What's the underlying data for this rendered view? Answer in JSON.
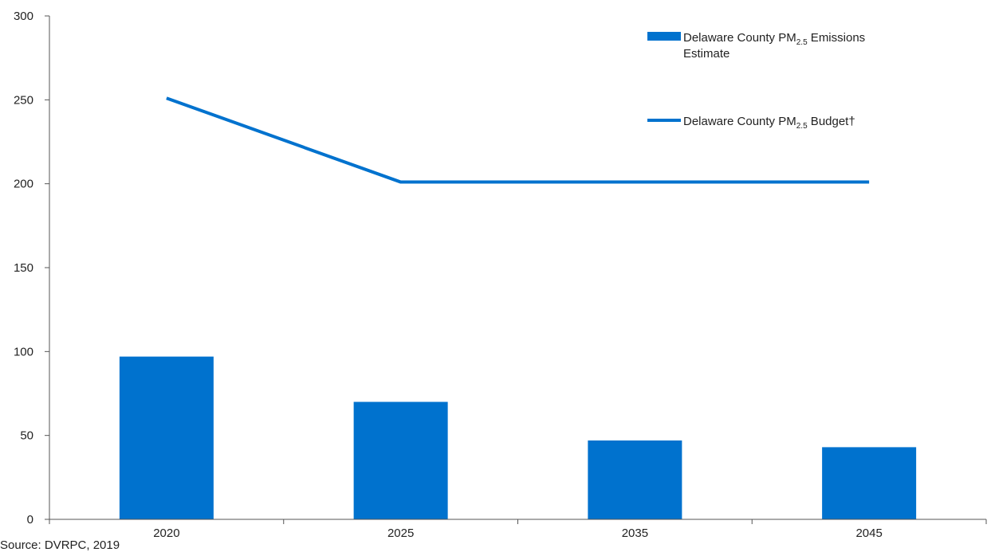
{
  "chart_data": {
    "type": "bar",
    "categories": [
      "2020",
      "2025",
      "2035",
      "2045"
    ],
    "series": [
      {
        "name": "Delaware County PM2.5 Emissions Estimate",
        "kind": "bar",
        "values": [
          97,
          70,
          47,
          43
        ]
      },
      {
        "name": "Delaware County PM2.5 Budget†",
        "kind": "line",
        "values": [
          251,
          201,
          201,
          201
        ]
      }
    ],
    "yticks": [
      "0",
      "50",
      "100",
      "150",
      "200",
      "250",
      "300"
    ],
    "ylim": [
      0,
      300
    ],
    "grid": false,
    "legend_position": "top-right",
    "legend": {
      "bar": {
        "line1_pre": "Delaware County PM",
        "sub": "2.5",
        "line1_post": " Emissions",
        "line2": "Estimate"
      },
      "line": {
        "pre": "Delaware County PM",
        "sub": "2.5",
        "post": " Budget†"
      }
    },
    "colors": {
      "bar": "#0072CE",
      "line": "#0072CE",
      "axis": "#555555"
    }
  },
  "source_note": "Source: DVRPC, 2019"
}
